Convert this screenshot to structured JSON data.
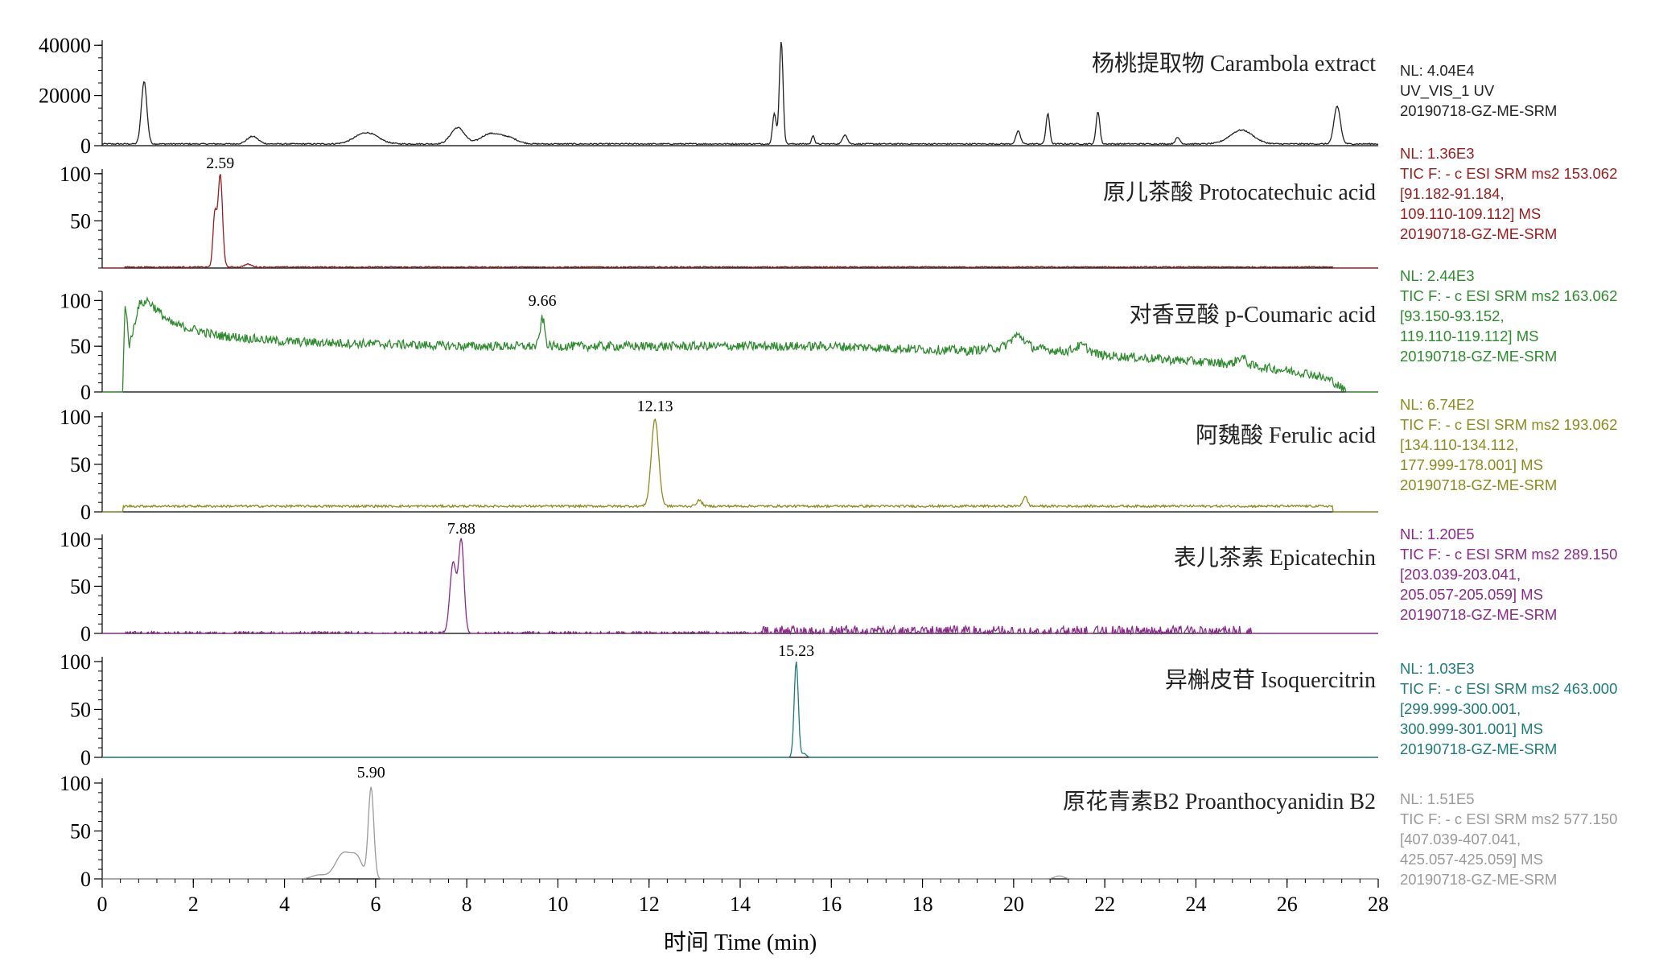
{
  "chart_data": {
    "type": "line",
    "xlabel": "时间 Time (min)",
    "xlim": [
      0,
      28
    ],
    "x_ticks": [
      "0",
      "2",
      "4",
      "6",
      "8",
      "10",
      "12",
      "14",
      "16",
      "18",
      "20",
      "22",
      "24",
      "26",
      "28"
    ],
    "panels": [
      {
        "id": "uv",
        "title": "杨桃提取物 Carambola extract",
        "color": "#222222",
        "ylim": [
          0,
          42000
        ],
        "y_ticks": [
          "40000",
          "20000",
          "0"
        ],
        "y_tick_values": [
          40000,
          20000,
          0
        ],
        "peak_label": "",
        "info": [
          "NL: 4.04E4",
          "UV_VIS_1  UV",
          "20190718-GZ-ME-SRM"
        ],
        "baseline": 700,
        "noise": 250,
        "peaks": [
          {
            "x": 0.92,
            "h": 25000,
            "w": 0.06
          },
          {
            "x": 3.3,
            "h": 3000,
            "w": 0.12
          },
          {
            "x": 5.8,
            "h": 4500,
            "w": 0.25
          },
          {
            "x": 7.8,
            "h": 6500,
            "w": 0.15
          },
          {
            "x": 8.5,
            "h": 3800,
            "w": 0.2
          },
          {
            "x": 8.9,
            "h": 2500,
            "w": 0.2
          },
          {
            "x": 14.75,
            "h": 12000,
            "w": 0.04
          },
          {
            "x": 14.9,
            "h": 41000,
            "w": 0.04
          },
          {
            "x": 15.6,
            "h": 3500,
            "w": 0.03
          },
          {
            "x": 16.3,
            "h": 3800,
            "w": 0.05
          },
          {
            "x": 20.1,
            "h": 5000,
            "w": 0.05
          },
          {
            "x": 20.75,
            "h": 12000,
            "w": 0.04
          },
          {
            "x": 21.85,
            "h": 13000,
            "w": 0.04
          },
          {
            "x": 23.6,
            "h": 2500,
            "w": 0.05
          },
          {
            "x": 25.0,
            "h": 5500,
            "w": 0.25
          },
          {
            "x": 27.1,
            "h": 15000,
            "w": 0.07
          }
        ]
      },
      {
        "id": "protocatechuic",
        "title": "原儿茶酸 Protocatechuic acid",
        "color": "#9b1c1c",
        "ylim": [
          0,
          105
        ],
        "y_ticks": [
          "100",
          "50"
        ],
        "y_tick_values": [
          100,
          50
        ],
        "peak_label": "2.59",
        "peak_x": 2.59,
        "peak_y": 100,
        "info": [
          "NL: 1.36E3",
          "TIC F: - c ESI SRM ms2 153.062",
          "[91.182-91.184,",
          "109.110-109.112]  MS",
          "20190718-GZ-ME-SRM"
        ],
        "baseline": 1,
        "noise": 0.6,
        "x_start": 0.5,
        "x_end": 27.0,
        "peaks": [
          {
            "x": 2.59,
            "h": 98,
            "w": 0.05
          },
          {
            "x": 2.47,
            "h": 55,
            "w": 0.04
          },
          {
            "x": 3.2,
            "h": 3,
            "w": 0.08
          }
        ]
      },
      {
        "id": "coumaric",
        "title": "对香豆酸 p-Coumaric acid",
        "color": "#2e8b2e",
        "ylim": [
          0,
          110
        ],
        "y_ticks": [
          "100",
          "50",
          "0"
        ],
        "y_tick_values": [
          100,
          50,
          0
        ],
        "peak_label": "9.66",
        "peak_x": 9.66,
        "peak_y": 88,
        "info": [
          "NL: 2.44E3",
          "TIC F: - c ESI SRM ms2 163.062",
          "[93.150-93.152,",
          "119.110-119.112]  MS",
          "20190718-GZ-ME-SRM"
        ],
        "baseline": 0,
        "noise": 5,
        "envelope": [
          [
            0.45,
            0
          ],
          [
            0.5,
            100
          ],
          [
            0.6,
            50
          ],
          [
            0.8,
            95
          ],
          [
            1.0,
            100
          ],
          [
            1.5,
            75
          ],
          [
            2.5,
            62
          ],
          [
            4.0,
            55
          ],
          [
            8.0,
            50
          ],
          [
            12.0,
            50
          ],
          [
            16.0,
            50
          ],
          [
            19.0,
            45
          ],
          [
            20.0,
            50
          ],
          [
            22.0,
            40
          ],
          [
            25.0,
            30
          ],
          [
            26.5,
            20
          ],
          [
            27.0,
            12
          ],
          [
            27.3,
            0
          ],
          [
            28.0,
            0
          ]
        ],
        "peaks": [
          {
            "x": 9.66,
            "h": 30,
            "w": 0.05
          },
          {
            "x": 20.1,
            "h": 12,
            "w": 0.15
          },
          {
            "x": 21.5,
            "h": 8,
            "w": 0.15
          },
          {
            "x": 25.0,
            "h": 8,
            "w": 0.1
          }
        ]
      },
      {
        "id": "ferulic",
        "title": "阿魏酸 Ferulic acid",
        "color": "#8c8c1e",
        "ylim": [
          0,
          105
        ],
        "y_ticks": [
          "100",
          "50",
          "0"
        ],
        "y_tick_values": [
          100,
          50,
          0
        ],
        "peak_label": "12.13",
        "peak_x": 12.13,
        "peak_y": 100,
        "info": [
          "NL: 6.74E2",
          "TIC F: - c ESI SRM ms2 193.062",
          "[134.110-134.112,",
          "177.999-178.001]  MS",
          "20190718-GZ-ME-SRM"
        ],
        "baseline": 6,
        "noise": 1.2,
        "x_start": 0.45,
        "x_end": 27.0,
        "peaks": [
          {
            "x": 12.13,
            "h": 92,
            "w": 0.08
          },
          {
            "x": 13.1,
            "h": 6,
            "w": 0.06
          },
          {
            "x": 20.25,
            "h": 10,
            "w": 0.05
          }
        ]
      },
      {
        "id": "epicatechin",
        "title": "表儿茶素 Epicatechin",
        "color": "#8b2a8b",
        "ylim": [
          0,
          105
        ],
        "y_ticks": [
          "100",
          "50",
          "0"
        ],
        "y_tick_values": [
          100,
          50,
          0
        ],
        "peak_label": "7.88",
        "peak_x": 7.88,
        "peak_y": 100,
        "info": [
          "NL: 1.20E5",
          "TIC F: - c ESI SRM ms2 289.150",
          "[203.039-203.041,",
          "205.057-205.059]  MS",
          "20190718-GZ-ME-SRM"
        ],
        "baseline": 0,
        "noise": 0,
        "sparse_noise": [
          [
            0.5,
            7.5,
            2
          ],
          [
            8.2,
            14.5,
            2
          ],
          [
            14.5,
            25.2,
            8
          ]
        ],
        "peaks": [
          {
            "x": 7.7,
            "h": 75,
            "w": 0.07
          },
          {
            "x": 7.88,
            "h": 98,
            "w": 0.06
          }
        ]
      },
      {
        "id": "isoquercitrin",
        "title": "异槲皮苷 Isoquercitrin",
        "color": "#1e7b7b",
        "ylim": [
          0,
          105
        ],
        "y_ticks": [
          "100",
          "50",
          "0"
        ],
        "y_tick_values": [
          100,
          50,
          0
        ],
        "peak_label": "15.23",
        "peak_x": 15.23,
        "peak_y": 100,
        "info": [
          "NL: 1.03E3",
          "TIC F: - c ESI SRM ms2 463.000",
          "[299.999-300.001,",
          "300.999-301.001]  MS",
          "20190718-GZ-ME-SRM"
        ],
        "baseline": 0,
        "noise": 0,
        "peaks": [
          {
            "x": 15.23,
            "h": 100,
            "w": 0.045
          },
          {
            "x": 15.4,
            "h": 4,
            "w": 0.05
          }
        ]
      },
      {
        "id": "proanthocyanidin",
        "title": "原花青素B2 Proanthocyanidin B2",
        "color": "#9a9a9a",
        "ylim": [
          0,
          105
        ],
        "y_ticks": [
          "100",
          "50",
          "0"
        ],
        "y_tick_values": [
          100,
          50,
          0
        ],
        "peak_label": "5.90",
        "peak_x": 5.9,
        "peak_y": 100,
        "info": [
          "NL: 1.51E5",
          "TIC F: - c ESI SRM ms2 577.150",
          "[407.039-407.041,",
          "425.057-425.059]  MS",
          "20190718-GZ-ME-SRM"
        ],
        "baseline": 0,
        "noise": 0,
        "peaks": [
          {
            "x": 4.75,
            "h": 4,
            "w": 0.15
          },
          {
            "x": 5.3,
            "h": 27,
            "w": 0.18
          },
          {
            "x": 5.6,
            "h": 18,
            "w": 0.12
          },
          {
            "x": 5.9,
            "h": 95,
            "w": 0.06
          },
          {
            "x": 21.0,
            "h": 3,
            "w": 0.1
          }
        ]
      }
    ]
  }
}
